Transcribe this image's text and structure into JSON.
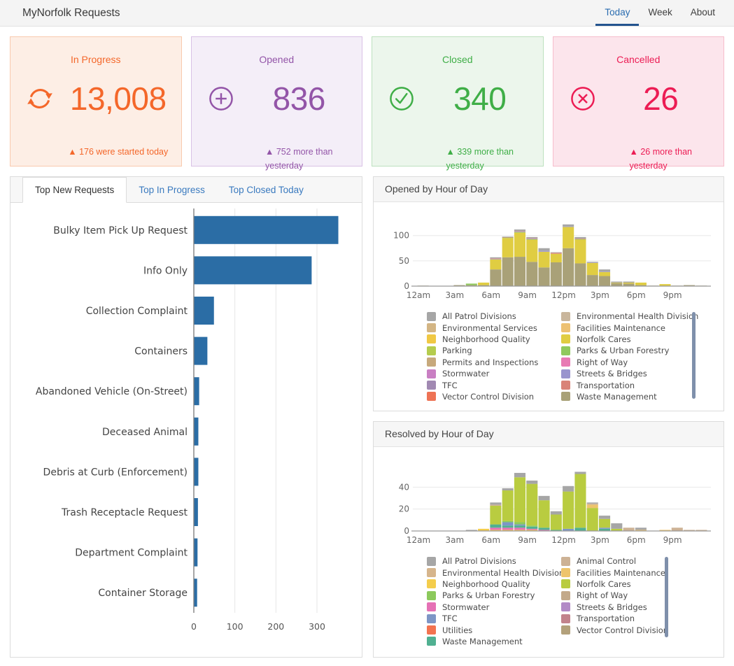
{
  "header": {
    "title": "MyNorfolk Requests",
    "tabs": [
      {
        "label": "Today",
        "active": true
      },
      {
        "label": "Week",
        "active": false
      },
      {
        "label": "About",
        "active": false
      }
    ]
  },
  "cards": [
    {
      "label": "In Progress",
      "value": "13,008",
      "delta_line1": "▲ 176 were started today",
      "delta_line2": "",
      "icon": "refresh-icon",
      "color": "#f4672a",
      "bg": "#fdeee5",
      "border": "#f9caae"
    },
    {
      "label": "Opened",
      "value": "836",
      "delta_line1": "▲ 752 more than",
      "delta_line2": "yesterday",
      "icon": "plus-circle-icon",
      "color": "#9355a8",
      "bg": "#f4eef8",
      "border": "#d9c1e5"
    },
    {
      "label": "Closed",
      "value": "340",
      "delta_line1": "▲ 339 more than",
      "delta_line2": "yesterday",
      "icon": "check-circle-icon",
      "color": "#3fae47",
      "bg": "#ecf6ec",
      "border": "#bde1be"
    },
    {
      "label": "Cancelled",
      "value": "26",
      "delta_line1": "▲ 26 more than",
      "delta_line2": "yesterday",
      "icon": "x-circle-icon",
      "color": "#ec1c54",
      "bg": "#fce5ec",
      "border": "#f6bdcc"
    }
  ],
  "left_panel": {
    "tabs": [
      {
        "label": "Top New Requests",
        "active": true
      },
      {
        "label": "Top In Progress",
        "active": false
      },
      {
        "label": "Top Closed Today",
        "active": false
      }
    ]
  },
  "chart_data": [
    {
      "id": "top-new-requests",
      "type": "bar",
      "orientation": "horizontal",
      "title": "Top New Requests",
      "categories": [
        "Bulky Item Pick Up Request",
        "Info Only",
        "Collection Complaint",
        "Containers",
        "Abandoned Vehicle (On-Street)",
        "Deceased Animal",
        "Debris at Curb (Enforcement)",
        "Trash Receptacle Request",
        "Department Complaint",
        "Container Storage"
      ],
      "values": [
        351,
        286,
        48,
        32,
        12,
        10,
        10,
        9,
        8,
        7
      ],
      "xticks": [
        0,
        100,
        200,
        300
      ],
      "xlim": [
        0,
        390
      ],
      "bar_color": "#2b6da5",
      "grid": true
    },
    {
      "id": "opened-by-hour",
      "type": "bar-stacked",
      "title": "Opened by Hour of Day",
      "x": [
        "12am",
        "1am",
        "2am",
        "3am",
        "4am",
        "5am",
        "6am",
        "7am",
        "8am",
        "9am",
        "10am",
        "11am",
        "12pm",
        "1pm",
        "2pm",
        "3pm",
        "4pm",
        "5pm",
        "6pm",
        "7pm",
        "8pm",
        "9pm",
        "10pm",
        "11pm"
      ],
      "xtick_labels": [
        "12am",
        "3am",
        "6am",
        "9am",
        "12pm",
        "3pm",
        "6pm",
        "9pm"
      ],
      "xtick_positions": [
        0,
        3,
        6,
        9,
        12,
        15,
        18,
        21
      ],
      "yticks": [
        0,
        50,
        100
      ],
      "ylim": [
        0,
        130
      ],
      "grid": true,
      "legend_position": "bottom",
      "series": [
        {
          "name": "Waste Management",
          "color": "#a9a178",
          "values": [
            1,
            0,
            0,
            2,
            2,
            2,
            33,
            57,
            58,
            48,
            37,
            47,
            75,
            45,
            22,
            20,
            6,
            5,
            2,
            1,
            0,
            1,
            2,
            1
          ]
        },
        {
          "name": "Norfolk Cares",
          "color": "#e0cd42",
          "values": [
            0,
            0,
            0,
            0,
            0,
            5,
            20,
            38,
            48,
            44,
            31,
            17,
            42,
            47,
            24,
            8,
            1,
            2,
            5,
            0,
            4,
            0,
            0,
            0
          ]
        },
        {
          "name": "Parks & Urban Forestry",
          "color": "#90c95e",
          "values": [
            0,
            0,
            0,
            0,
            3,
            0,
            0,
            1,
            1,
            1,
            0,
            0,
            0,
            1,
            0,
            0,
            0,
            0,
            0,
            0,
            0,
            0,
            0,
            0
          ]
        },
        {
          "name": "Streets & Bridges",
          "color": "#9a95ce",
          "values": [
            0,
            0,
            0,
            0,
            0,
            0,
            1,
            0,
            1,
            1,
            2,
            0,
            1,
            0,
            1,
            1,
            0,
            0,
            0,
            0,
            0,
            0,
            0,
            0
          ]
        },
        {
          "name": "Transportation",
          "color": "#d98378",
          "values": [
            0,
            0,
            0,
            0,
            0,
            0,
            1,
            1,
            1,
            1,
            0,
            2,
            0,
            1,
            0,
            0,
            0,
            0,
            0,
            0,
            0,
            0,
            0,
            0
          ]
        },
        {
          "name": "All Patrol Divisions",
          "color": "#a6a6a6",
          "values": [
            0,
            0,
            0,
            0,
            0,
            0,
            2,
            1,
            3,
            2,
            5,
            1,
            4,
            3,
            1,
            4,
            2,
            2,
            0,
            0,
            0,
            0,
            0,
            0
          ]
        }
      ],
      "legend": [
        {
          "label": "All Patrol Divisions",
          "color": "#a6a6a6"
        },
        {
          "label": "Environmental Services",
          "color": "#d3b584"
        },
        {
          "label": "Neighborhood Quality",
          "color": "#f0c844"
        },
        {
          "label": "Parking",
          "color": "#b5cc4e"
        },
        {
          "label": "Permits and Inspections",
          "color": "#c7a97c"
        },
        {
          "label": "Stormwater",
          "color": "#c97fc3"
        },
        {
          "label": "TFC",
          "color": "#a189b2"
        },
        {
          "label": "Vector Control Division",
          "color": "#ee7355"
        },
        {
          "label": "Environmental Health Division",
          "color": "#c9b69c"
        },
        {
          "label": "Facilities Maintenance",
          "color": "#edc172"
        },
        {
          "label": "Norfolk Cares",
          "color": "#e0cd42"
        },
        {
          "label": "Parks & Urban Forestry",
          "color": "#90c95e"
        },
        {
          "label": "Right of Way",
          "color": "#e87ab4"
        },
        {
          "label": "Streets & Bridges",
          "color": "#9a95ce"
        },
        {
          "label": "Transportation",
          "color": "#d98378"
        },
        {
          "label": "Waste Management",
          "color": "#a9a178"
        }
      ]
    },
    {
      "id": "resolved-by-hour",
      "type": "bar-stacked",
      "title": "Resolved by Hour of Day",
      "x": [
        "12am",
        "1am",
        "2am",
        "3am",
        "4am",
        "5am",
        "6am",
        "7am",
        "8am",
        "9am",
        "10am",
        "11am",
        "12pm",
        "1pm",
        "2pm",
        "3pm",
        "4pm",
        "5pm",
        "6pm",
        "7pm",
        "8pm",
        "9pm",
        "10pm",
        "11pm"
      ],
      "xtick_labels": [
        "12am",
        "3am",
        "6am",
        "9am",
        "12pm",
        "3pm",
        "6pm",
        "9pm"
      ],
      "xtick_positions": [
        0,
        3,
        6,
        9,
        12,
        15,
        18,
        21
      ],
      "yticks": [
        0,
        20,
        40
      ],
      "ylim": [
        0,
        60
      ],
      "grid": true,
      "legend_position": "bottom",
      "series": [
        {
          "name": "Neighborhood Quality",
          "color": "#f4cd4c",
          "values": [
            0,
            0,
            0,
            0,
            0,
            2,
            1,
            1,
            1,
            1,
            0,
            0,
            0,
            0,
            0,
            0,
            0,
            0,
            0,
            0,
            0,
            0,
            0,
            0
          ]
        },
        {
          "name": "Stormwater",
          "color": "#e571b5",
          "values": [
            0,
            0,
            0,
            0,
            0,
            0,
            2,
            2,
            2,
            1,
            1,
            0,
            0,
            0,
            0,
            0,
            0,
            0,
            0,
            0,
            0,
            0,
            0,
            0
          ]
        },
        {
          "name": "Waste Management",
          "color": "#50b091",
          "values": [
            0,
            0,
            0,
            0,
            0,
            0,
            3,
            2,
            2,
            2,
            2,
            1,
            0,
            3,
            0,
            2,
            0,
            0,
            0,
            0,
            0,
            0,
            0,
            0
          ]
        },
        {
          "name": "TFC",
          "color": "#7e96c6",
          "values": [
            0,
            0,
            0,
            0,
            0,
            0,
            0,
            3,
            1,
            0,
            0,
            0,
            2,
            0,
            0,
            1,
            0,
            0,
            0,
            0,
            0,
            0,
            0,
            0
          ]
        },
        {
          "name": "Parks & Urban Forestry",
          "color": "#8cc95c",
          "values": [
            0,
            0,
            0,
            0,
            0,
            0,
            0,
            1,
            2,
            1,
            0,
            0,
            0,
            0,
            0,
            0,
            0,
            0,
            0,
            0,
            0,
            0,
            0,
            0
          ]
        },
        {
          "name": "Norfolk Cares",
          "color": "#b9cc40",
          "values": [
            0,
            0,
            0,
            0,
            0,
            0,
            17,
            28,
            41,
            38,
            25,
            14,
            34,
            49,
            21,
            8,
            2,
            0,
            0,
            0,
            0,
            0,
            0,
            0
          ]
        },
        {
          "name": "Facilities Maintenance",
          "color": "#eec46c",
          "values": [
            0,
            0,
            0,
            0,
            0,
            0,
            0,
            0,
            0,
            0,
            0,
            0,
            0,
            0,
            3,
            0,
            0,
            0,
            1,
            0,
            1,
            0,
            0,
            0
          ]
        },
        {
          "name": "Animal Control",
          "color": "#cdb295",
          "values": [
            0,
            0,
            0,
            0,
            0,
            0,
            1,
            0,
            0,
            0,
            0,
            0,
            0,
            0,
            1,
            0,
            0,
            3,
            0,
            0,
            0,
            3,
            1,
            1
          ]
        },
        {
          "name": "All Patrol Divisions",
          "color": "#a6a6a6",
          "values": [
            0,
            0,
            0,
            0,
            1,
            0,
            2,
            2,
            4,
            3,
            4,
            3,
            5,
            2,
            1,
            3,
            5,
            0,
            2,
            0,
            0,
            0,
            0,
            0
          ]
        }
      ],
      "legend": [
        {
          "label": "All Patrol Divisions",
          "color": "#a6a6a6"
        },
        {
          "label": "Environmental Health Division",
          "color": "#d6b58c"
        },
        {
          "label": "Neighborhood Quality",
          "color": "#f4cd4c"
        },
        {
          "label": "Parks & Urban Forestry",
          "color": "#8cc95c"
        },
        {
          "label": "Stormwater",
          "color": "#e571b5"
        },
        {
          "label": "TFC",
          "color": "#7e96c6"
        },
        {
          "label": "Utilities",
          "color": "#f37350"
        },
        {
          "label": "Waste Management",
          "color": "#50b091"
        },
        {
          "label": "Animal Control",
          "color": "#cdb295"
        },
        {
          "label": "Facilities Maintenance",
          "color": "#eec46c"
        },
        {
          "label": "Norfolk Cares",
          "color": "#b9cc40"
        },
        {
          "label": "Right of Way",
          "color": "#c3a98a"
        },
        {
          "label": "Streets & Bridges",
          "color": "#b28ac6"
        },
        {
          "label": "Transportation",
          "color": "#c2838c"
        },
        {
          "label": "Vector Control Division",
          "color": "#b3a17b"
        }
      ]
    }
  ]
}
